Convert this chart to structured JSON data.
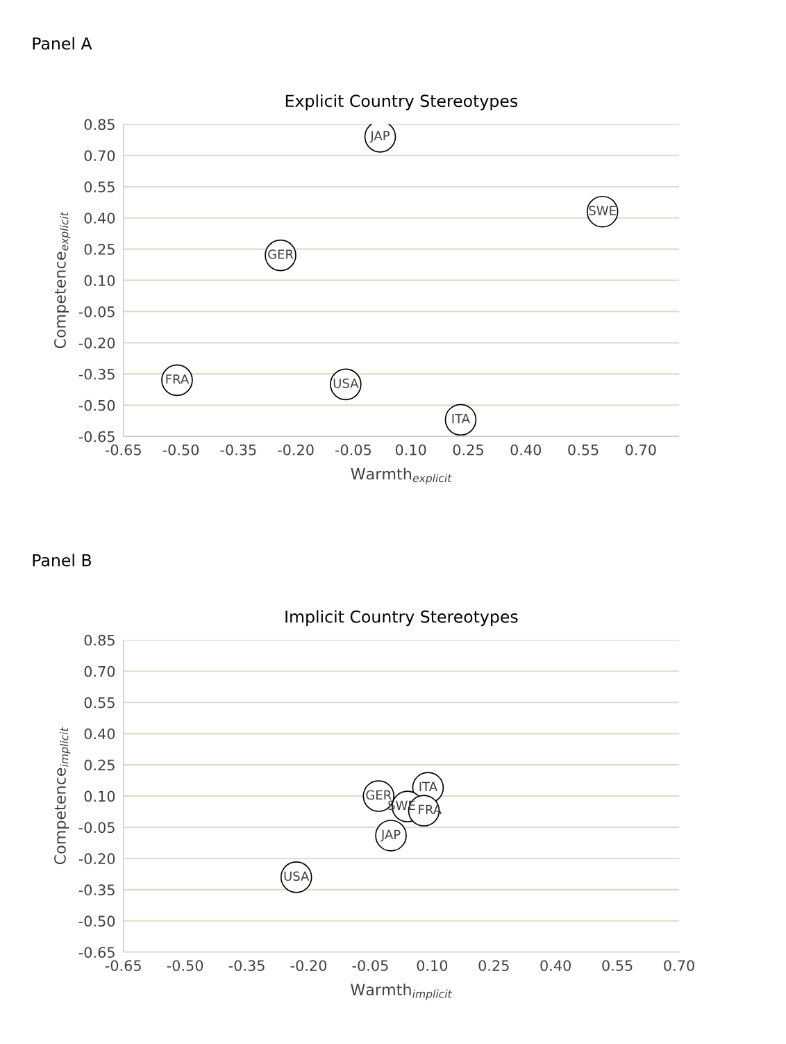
{
  "chart_data": [
    {
      "type": "scatter",
      "title": "Explicit Country Stereotypes",
      "xlabel": "Warmth$_{explicit}$",
      "ylabel": "Competence$_{explicit}$",
      "annotations": [
        "Panel A",
        {
          "text": "JAP",
          "x": 0.02,
          "y": 0.79
        },
        {
          "text": "SWE",
          "x": 0.6,
          "y": 0.43
        },
        {
          "text": "GER",
          "x": -0.24,
          "y": 0.22
        },
        {
          "text": "FRA",
          "x": -0.51,
          "y": -0.38
        },
        {
          "text": "USA",
          "x": -0.07,
          "y": -0.4
        },
        {
          "text": "ITA",
          "x": 0.23,
          "y": -0.57
        }
      ],
      "x": [
        0.02,
        0.6,
        -0.24,
        -0.51,
        -0.07,
        0.23
      ],
      "values": [
        0.79,
        0.43,
        0.22,
        -0.38,
        -0.4,
        -0.57
      ],
      "color": "#000000",
      "marker": "circle",
      "xlim": [
        -0.65,
        0.8
      ],
      "xticks": [
        {
          "value": -0.65,
          "label": "-0.65"
        },
        {
          "value": -0.5,
          "label": "-0.50"
        },
        {
          "value": -0.35,
          "label": "-0.35"
        },
        {
          "value": -0.2,
          "label": "-0.20"
        },
        {
          "value": -0.05,
          "label": "-0.05"
        },
        {
          "value": 0.1,
          "label": "0.10"
        },
        {
          "value": 0.25,
          "label": "0.25"
        },
        {
          "value": 0.4,
          "label": "0.40"
        },
        {
          "value": 0.55,
          "label": "0.55"
        },
        {
          "value": 0.7,
          "label": "0.70"
        }
      ],
      "ylim": [
        -0.65,
        0.85
      ],
      "yticks": [
        {
          "value": -0.65,
          "label": "-0.65"
        },
        {
          "value": -0.5,
          "label": "-0.50"
        },
        {
          "value": -0.35,
          "label": "-0.35"
        },
        {
          "value": -0.2,
          "label": "-0.20"
        },
        {
          "value": -0.05,
          "label": "-0.05"
        },
        {
          "value": 0.1,
          "label": "0.10"
        },
        {
          "value": 0.25,
          "label": "0.25"
        },
        {
          "value": 0.4,
          "label": "0.40"
        },
        {
          "value": 0.55,
          "label": "0.55"
        },
        {
          "value": 0.7,
          "label": "0.70"
        },
        {
          "value": 0.85,
          "label": "0.85"
        }
      ],
      "grid": "y"
    },
    {
      "type": "scatter",
      "title": "Implicit Country Stereotypes",
      "xlabel": "Warmth$_{implicit}$",
      "ylabel": "Competence$_{implicit}$",
      "annotations": [
        "Panel B",
        {
          "text": "GER",
          "x": -0.03,
          "y": 0.1
        },
        {
          "text": "ITA",
          "x": 0.09,
          "y": 0.14
        },
        {
          "text": "SWE",
          "x": 0.04,
          "y": 0.05
        },
        {
          "text": "FRA",
          "x": 0.08,
          "y": 0.03
        },
        {
          "text": "JAP",
          "x": 0.0,
          "y": -0.09
        },
        {
          "text": "USA",
          "x": -0.23,
          "y": -0.29
        }
      ],
      "x": [
        -0.03,
        0.09,
        0.04,
        0.08,
        0.0,
        -0.23
      ],
      "values": [
        0.1,
        0.14,
        0.05,
        0.03,
        -0.09,
        -0.29
      ],
      "color": "#000000",
      "marker": "circle",
      "xlim": [
        -0.65,
        0.7
      ],
      "xticks": [
        {
          "value": -0.65,
          "label": "-0.65"
        },
        {
          "value": -0.5,
          "label": "-0.50"
        },
        {
          "value": -0.35,
          "label": "-0.35"
        },
        {
          "value": -0.2,
          "label": "-0.20"
        },
        {
          "value": -0.05,
          "label": "-0.05"
        },
        {
          "value": 0.1,
          "label": "0.10"
        },
        {
          "value": 0.25,
          "label": "0.25"
        },
        {
          "value": 0.4,
          "label": "0.40"
        },
        {
          "value": 0.55,
          "label": "0.55"
        },
        {
          "value": 0.7,
          "label": "0.70"
        }
      ],
      "ylim": [
        -0.65,
        0.85
      ],
      "yticks": [
        {
          "value": -0.65,
          "label": "-0.65"
        },
        {
          "value": -0.5,
          "label": "-0.50"
        },
        {
          "value": -0.35,
          "label": "-0.35"
        },
        {
          "value": -0.2,
          "label": "-0.20"
        },
        {
          "value": -0.05,
          "label": "-0.05"
        },
        {
          "value": 0.1,
          "label": "0.10"
        },
        {
          "value": 0.25,
          "label": "0.25"
        },
        {
          "value": 0.4,
          "label": "0.40"
        },
        {
          "value": 0.55,
          "label": "0.55"
        },
        {
          "value": 0.7,
          "label": "0.70"
        },
        {
          "value": 0.85,
          "label": "0.85"
        }
      ],
      "grid": "y"
    }
  ]
}
